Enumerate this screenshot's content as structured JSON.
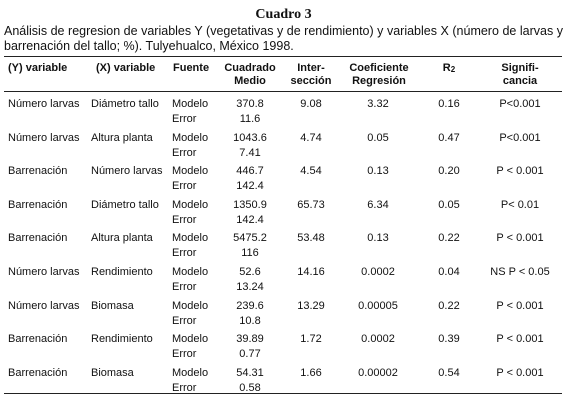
{
  "title": "Cuadro 3",
  "caption": "Análisis de regresion de variables Y (vegetativas y de rendimiento) y variables X (número de larvas y barrenación del tallo; %). Tulyehualco, México 1998.",
  "headers": {
    "y_variable": "(Y) variable",
    "x_variable": "(X) variable",
    "fuente": "Fuente",
    "cuadrado_1": "Cuadrado",
    "cuadrado_2": "Medio",
    "interseccion_1": "Inter-",
    "interseccion_2": "sección",
    "coeficiente_1": "Coeficiente",
    "coeficiente_2": "Regresión",
    "r2_base": "R",
    "r2_sub": "2",
    "signif_1": "Signifi-",
    "signif_2": "cancia"
  },
  "rows": [
    {
      "y": "Número larvas",
      "x": "Diámetro tallo",
      "fuente_modelo": "Modelo",
      "fuente_error": "Error",
      "cm_modelo": "370.8",
      "cm_error": "11.6",
      "interseccion": "9.08",
      "coeficiente": "3.32",
      "r2": "0.16",
      "significancia": "P<0.001"
    },
    {
      "y": "Número larvas",
      "x": "Altura planta",
      "fuente_modelo": "Modelo",
      "fuente_error": "Error",
      "cm_modelo": "1043.6",
      "cm_error": "7.41",
      "interseccion": "4.74",
      "coeficiente": "0.05",
      "r2": "0.47",
      "significancia": "P<0.001"
    },
    {
      "y": "Barrenación",
      "x": "Número larvas",
      "fuente_modelo": "Modelo",
      "fuente_error": "Error",
      "cm_modelo": "446.7",
      "cm_error": "142.4",
      "interseccion": "4.54",
      "coeficiente": "0.13",
      "r2": "0.20",
      "significancia": "P < 0.001"
    },
    {
      "y": "Barrenación",
      "x": "Diámetro tallo",
      "fuente_modelo": "Modelo",
      "fuente_error": "Error",
      "cm_modelo": "1350.9",
      "cm_error": "142.4",
      "interseccion": "65.73",
      "coeficiente": "6.34",
      "r2": "0.05",
      "significancia": "P< 0.01"
    },
    {
      "y": "Barrenación",
      "x": "Altura planta",
      "fuente_modelo": "Modelo",
      "fuente_error": "Error",
      "cm_modelo": "5475.2",
      "cm_error": "116",
      "interseccion": "53.48",
      "coeficiente": "0.13",
      "r2": "0.22",
      "significancia": "P < 0.001"
    },
    {
      "y": "Número larvas",
      "x": "Rendimiento",
      "fuente_modelo": "Modelo",
      "fuente_error": "Error",
      "cm_modelo": "52.6",
      "cm_error": "13.24",
      "interseccion": "14.16",
      "coeficiente": "0.0002",
      "r2": "0.04",
      "significancia": "NS P < 0.05"
    },
    {
      "y": "Número larvas",
      "x": "Biomasa",
      "fuente_modelo": "Modelo",
      "fuente_error": "Error",
      "cm_modelo": "239.6",
      "cm_error": "10.8",
      "interseccion": "13.29",
      "coeficiente": "0.00005",
      "r2": "0.22",
      "significancia": "P < 0.001"
    },
    {
      "y": "Barrenación",
      "x": "Rendimiento",
      "fuente_modelo": "Modelo",
      "fuente_error": "Error",
      "cm_modelo": "39.89",
      "cm_error": "0.77",
      "interseccion": "1.72",
      "coeficiente": "0.0002",
      "r2": "0.39",
      "significancia": "P < 0.001"
    },
    {
      "y": "Barrenación",
      "x": "Biomasa",
      "fuente_modelo": "Modelo",
      "fuente_error": "Error",
      "cm_modelo": "54.31",
      "cm_error": "0.58",
      "interseccion": "1.66",
      "coeficiente": "0.00002",
      "r2": "0.54",
      "significancia": "P < 0.001"
    }
  ]
}
